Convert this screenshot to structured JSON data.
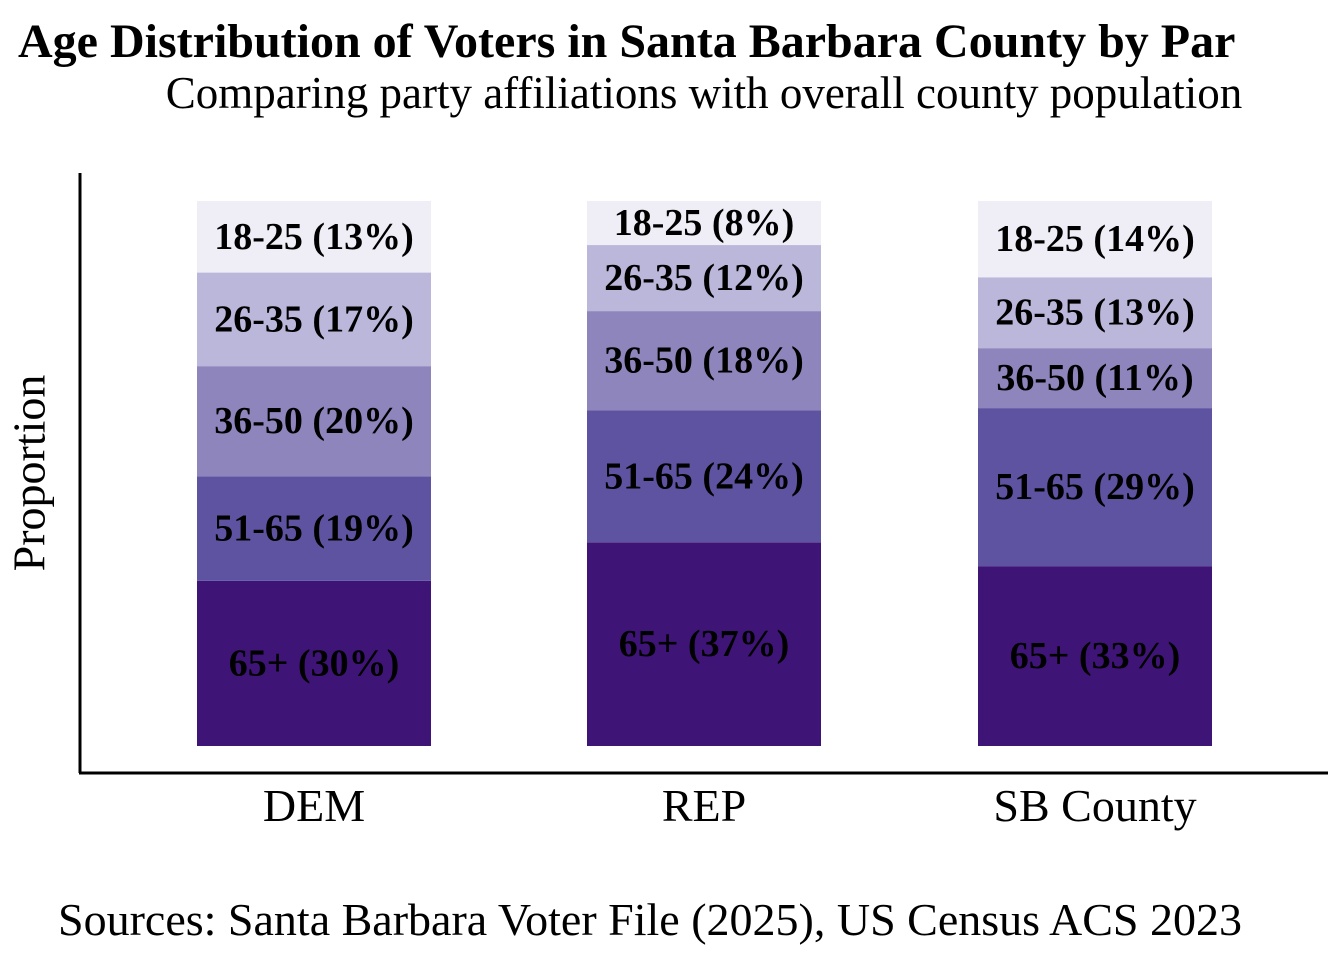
{
  "chart_data": {
    "type": "bar",
    "stacked": true,
    "title": "Age Distribution of Voters in Santa Barbara County by Par",
    "subtitle": "Comparing party affiliations with overall county population",
    "ylabel": "Proportion",
    "xlabel": "",
    "caption": "Sources: Santa Barbara Voter File (2025), US Census ACS 2023",
    "categories": [
      "DEM",
      "REP",
      "SB County"
    ],
    "ylim": [
      0,
      1
    ],
    "grid": false,
    "series": [
      {
        "name": "65+",
        "color": "#3f1477",
        "values": [
          0.3,
          0.37,
          0.33
        ],
        "labels": [
          "65+ (30%)",
          "65+ (37%)",
          "65+ (33%)"
        ]
      },
      {
        "name": "51-65",
        "color": "#5e53a1",
        "values": [
          0.19,
          0.24,
          0.29
        ],
        "labels": [
          "51-65 (19%)",
          "51-65 (24%)",
          "51-65 (29%)"
        ]
      },
      {
        "name": "36-50",
        "color": "#8d85bc",
        "values": [
          0.2,
          0.18,
          0.11
        ],
        "labels": [
          "36-50 (20%)",
          "36-50 (18%)",
          "36-50 (11%)"
        ]
      },
      {
        "name": "26-35",
        "color": "#bbb7db",
        "values": [
          0.17,
          0.12,
          0.13
        ],
        "labels": [
          "26-35 (17%)",
          "26-35 (12%)",
          "26-35 (13%)"
        ]
      },
      {
        "name": "18-25",
        "color": "#efedf6",
        "values": [
          0.13,
          0.08,
          0.14
        ],
        "labels": [
          "18-25 (13%)",
          "18-25 (8%)",
          "18-25 (14%)"
        ]
      }
    ]
  }
}
